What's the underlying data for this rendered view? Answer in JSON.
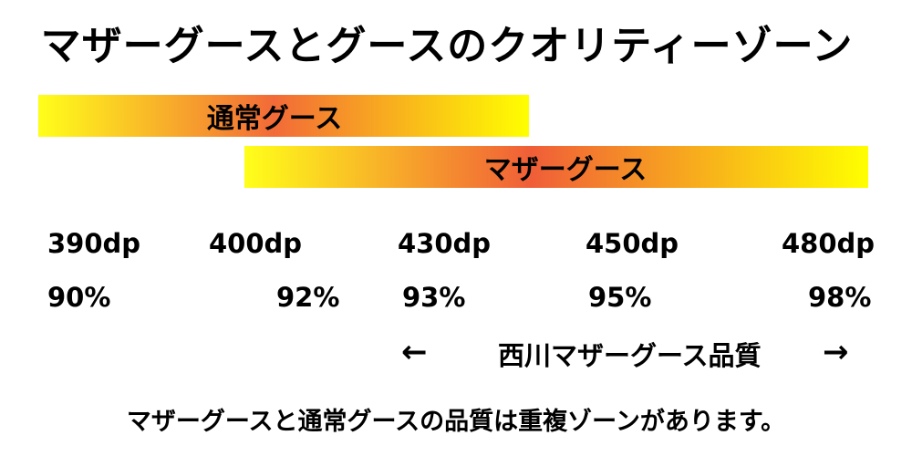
{
  "title": "マザーグースとグースのクオリティーゾーン",
  "bands": {
    "normal": "通常グース",
    "mother": "マザーグース"
  },
  "fill_power": [
    "390dp",
    "400dp",
    "430dp",
    "450dp",
    "480dp"
  ],
  "down_ratio": [
    "90%",
    "92%",
    "93%",
    "95%",
    "98%"
  ],
  "quality_range": {
    "left_arrow": "←",
    "label": "西川マザーグース品質",
    "right_arrow": "→"
  },
  "note": "マザーグースと通常グースの品質は重複ゾーンがあります。",
  "colors": {
    "gradient_yellow": "#ffff00",
    "gradient_orange": "#f26a38"
  }
}
